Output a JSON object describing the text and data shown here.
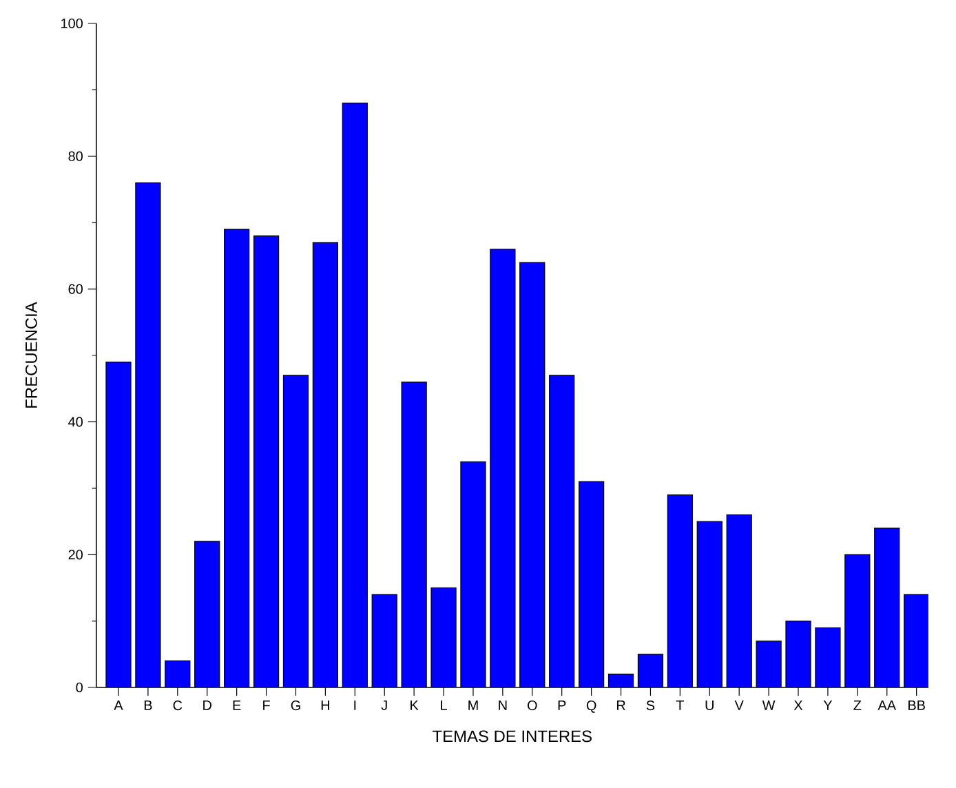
{
  "chart_data": {
    "type": "bar",
    "xlabel": "TEMAS DE INTERES",
    "ylabel": "FRECUENCIA",
    "categories": [
      "A",
      "B",
      "C",
      "D",
      "E",
      "F",
      "G",
      "H",
      "I",
      "J",
      "K",
      "L",
      "M",
      "N",
      "O",
      "P",
      "Q",
      "R",
      "S",
      "T",
      "U",
      "V",
      "W",
      "X",
      "Y",
      "Z",
      "AA",
      "BB"
    ],
    "values": [
      49,
      76,
      4,
      22,
      69,
      68,
      47,
      67,
      88,
      14,
      46,
      15,
      34,
      66,
      64,
      47,
      31,
      2,
      5,
      29,
      25,
      26,
      7,
      10,
      9,
      20,
      24,
      14
    ],
    "color": "#0000ff",
    "ylim": [
      0,
      100
    ],
    "yticks": [
      0,
      20,
      40,
      60,
      80,
      100
    ]
  }
}
